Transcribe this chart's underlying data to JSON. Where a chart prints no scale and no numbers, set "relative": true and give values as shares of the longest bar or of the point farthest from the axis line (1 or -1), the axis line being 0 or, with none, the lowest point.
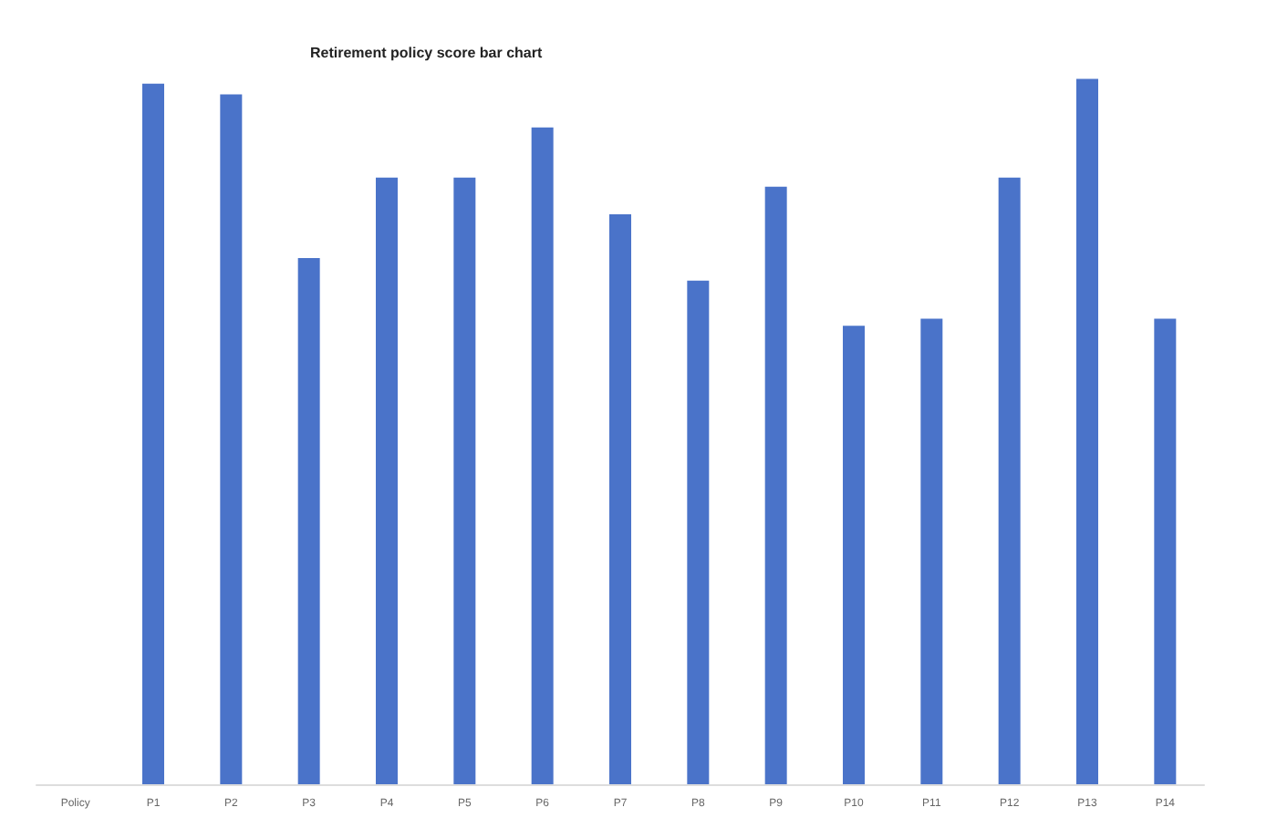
{
  "chart_data": {
    "type": "bar",
    "title": "Retirement policy score bar chart",
    "relative": true,
    "categories": [
      "Policy",
      "P1",
      "P2",
      "P3",
      "P4",
      "P5",
      "P6",
      "P7",
      "P8",
      "P9",
      "P10",
      "P11",
      "P12",
      "P13",
      "P14"
    ],
    "values": [
      null,
      0.993,
      0.978,
      0.746,
      0.86,
      0.86,
      0.931,
      0.808,
      0.714,
      0.847,
      0.65,
      0.66,
      0.86,
      1,
      0.66
    ],
    "color": "#4a73c9"
  }
}
